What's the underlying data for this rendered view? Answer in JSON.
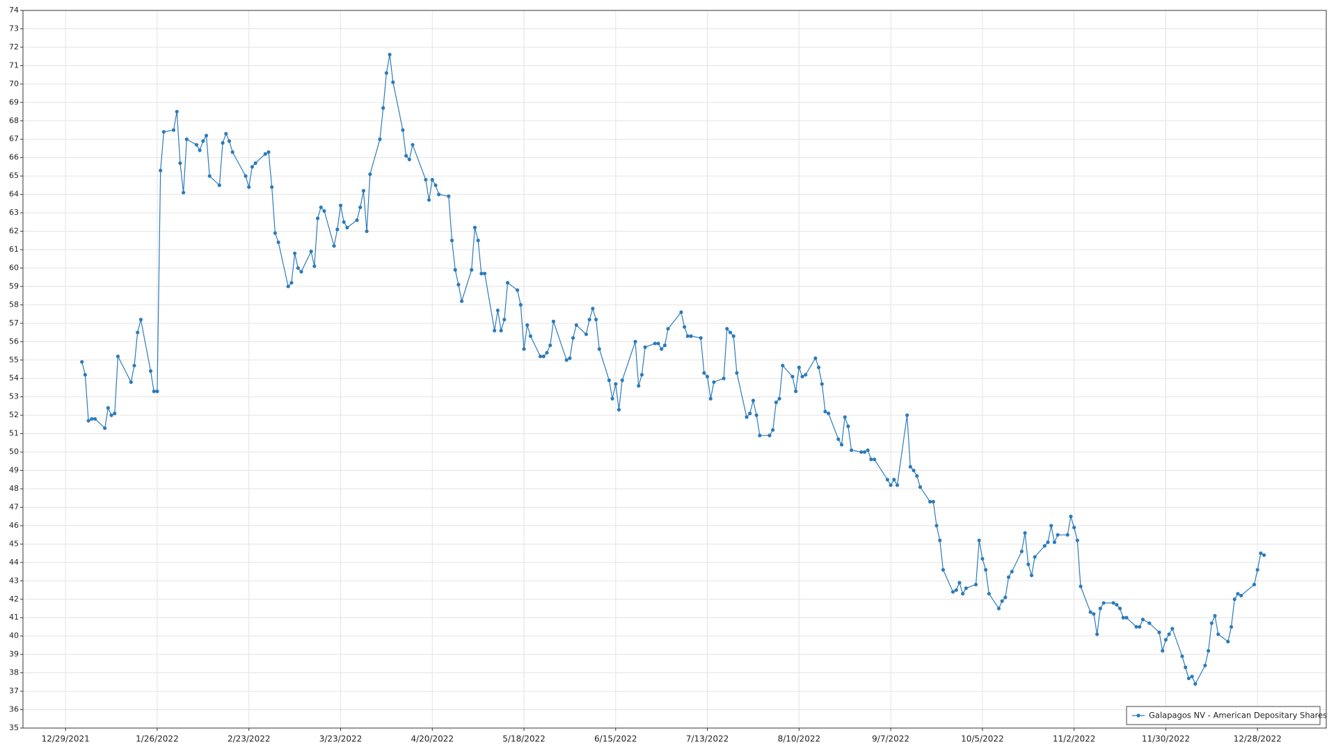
{
  "chart_data": {
    "type": "line",
    "x": [
      "1/3/2022",
      "1/4/2022",
      "1/5/2022",
      "1/6/2022",
      "1/7/2022",
      "1/10/2022",
      "1/11/2022",
      "1/12/2022",
      "1/13/2022",
      "1/14/2022",
      "1/18/2022",
      "1/19/2022",
      "1/20/2022",
      "1/21/2022",
      "1/24/2022",
      "1/25/2022",
      "1/26/2022",
      "1/27/2022",
      "1/28/2022",
      "1/31/2022",
      "2/1/2022",
      "2/2/2022",
      "2/3/2022",
      "2/4/2022",
      "2/7/2022",
      "2/8/2022",
      "2/9/2022",
      "2/10/2022",
      "2/11/2022",
      "2/14/2022",
      "2/15/2022",
      "2/16/2022",
      "2/17/2022",
      "2/18/2022",
      "2/22/2022",
      "2/23/2022",
      "2/24/2022",
      "2/25/2022",
      "2/28/2022",
      "3/1/2022",
      "3/2/2022",
      "3/3/2022",
      "3/4/2022",
      "3/7/2022",
      "3/8/2022",
      "3/9/2022",
      "3/10/2022",
      "3/11/2022",
      "3/14/2022",
      "3/15/2022",
      "3/16/2022",
      "3/17/2022",
      "3/18/2022",
      "3/21/2022",
      "3/22/2022",
      "3/23/2022",
      "3/24/2022",
      "3/25/2022",
      "3/28/2022",
      "3/29/2022",
      "3/30/2022",
      "3/31/2022",
      "4/1/2022",
      "4/4/2022",
      "4/5/2022",
      "4/6/2022",
      "4/7/2022",
      "4/8/2022",
      "4/11/2022",
      "4/12/2022",
      "4/13/2022",
      "4/14/2022",
      "4/18/2022",
      "4/19/2022",
      "4/20/2022",
      "4/21/2022",
      "4/22/2022",
      "4/25/2022",
      "4/26/2022",
      "4/27/2022",
      "4/28/2022",
      "4/29/2022",
      "5/2/2022",
      "5/3/2022",
      "5/4/2022",
      "5/5/2022",
      "5/6/2022",
      "5/9/2022",
      "5/10/2022",
      "5/11/2022",
      "5/12/2022",
      "5/13/2022",
      "5/16/2022",
      "5/17/2022",
      "5/18/2022",
      "5/19/2022",
      "5/20/2022",
      "5/23/2022",
      "5/24/2022",
      "5/25/2022",
      "5/26/2022",
      "5/27/2022",
      "5/31/2022",
      "6/1/2022",
      "6/2/2022",
      "6/3/2022",
      "6/6/2022",
      "6/7/2022",
      "6/8/2022",
      "6/9/2022",
      "6/10/2022",
      "6/13/2022",
      "6/14/2022",
      "6/15/2022",
      "6/16/2022",
      "6/17/2022",
      "6/21/2022",
      "6/22/2022",
      "6/23/2022",
      "6/24/2022",
      "6/27/2022",
      "6/28/2022",
      "6/29/2022",
      "6/30/2022",
      "7/1/2022",
      "7/5/2022",
      "7/6/2022",
      "7/7/2022",
      "7/8/2022",
      "7/11/2022",
      "7/12/2022",
      "7/13/2022",
      "7/14/2022",
      "7/15/2022",
      "7/18/2022",
      "7/19/2022",
      "7/20/2022",
      "7/21/2022",
      "7/22/2022",
      "7/25/2022",
      "7/26/2022",
      "7/27/2022",
      "7/28/2022",
      "7/29/2022",
      "8/1/2022",
      "8/2/2022",
      "8/3/2022",
      "8/4/2022",
      "8/5/2022",
      "8/8/2022",
      "8/9/2022",
      "8/10/2022",
      "8/11/2022",
      "8/12/2022",
      "8/15/2022",
      "8/16/2022",
      "8/17/2022",
      "8/18/2022",
      "8/19/2022",
      "8/22/2022",
      "8/23/2022",
      "8/24/2022",
      "8/25/2022",
      "8/26/2022",
      "8/29/2022",
      "8/30/2022",
      "8/31/2022",
      "9/1/2022",
      "9/2/2022",
      "9/6/2022",
      "9/7/2022",
      "9/8/2022",
      "9/9/2022",
      "9/12/2022",
      "9/13/2022",
      "9/14/2022",
      "9/15/2022",
      "9/16/2022",
      "9/19/2022",
      "9/20/2022",
      "9/21/2022",
      "9/22/2022",
      "9/23/2022",
      "9/26/2022",
      "9/27/2022",
      "9/28/2022",
      "9/29/2022",
      "9/30/2022",
      "10/3/2022",
      "10/4/2022",
      "10/5/2022",
      "10/6/2022",
      "10/7/2022",
      "10/10/2022",
      "10/11/2022",
      "10/12/2022",
      "10/13/2022",
      "10/14/2022",
      "10/17/2022",
      "10/18/2022",
      "10/19/2022",
      "10/20/2022",
      "10/21/2022",
      "10/24/2022",
      "10/25/2022",
      "10/26/2022",
      "10/27/2022",
      "10/28/2022",
      "10/31/2022",
      "11/1/2022",
      "11/2/2022",
      "11/3/2022",
      "11/4/2022",
      "11/7/2022",
      "11/8/2022",
      "11/9/2022",
      "11/10/2022",
      "11/11/2022",
      "11/14/2022",
      "11/15/2022",
      "11/16/2022",
      "11/17/2022",
      "11/18/2022",
      "11/21/2022",
      "11/22/2022",
      "11/23/2022",
      "11/25/2022",
      "11/28/2022",
      "11/29/2022",
      "11/30/2022",
      "12/1/2022",
      "12/2/2022",
      "12/5/2022",
      "12/6/2022",
      "12/7/2022",
      "12/8/2022",
      "12/9/2022",
      "12/12/2022",
      "12/13/2022",
      "12/14/2022",
      "12/15/2022",
      "12/16/2022",
      "12/19/2022",
      "12/20/2022",
      "12/21/2022",
      "12/22/2022",
      "12/23/2022",
      "12/27/2022",
      "12/28/2022",
      "12/29/2022",
      "12/30/2022"
    ],
    "series": [
      {
        "name": "Galapagos NV - American Depositary Shares",
        "color": "#2b7bba",
        "values": [
          54.9,
          54.2,
          51.7,
          51.8,
          51.8,
          51.3,
          52.4,
          52.0,
          52.1,
          55.2,
          53.8,
          54.7,
          56.5,
          57.2,
          54.4,
          53.3,
          53.3,
          65.3,
          67.4,
          67.5,
          68.5,
          65.7,
          64.1,
          67.0,
          66.7,
          66.4,
          66.9,
          67.2,
          65.0,
          64.5,
          66.8,
          67.3,
          66.9,
          66.3,
          65.0,
          64.4,
          65.5,
          65.7,
          66.2,
          66.3,
          64.4,
          61.9,
          61.4,
          59.0,
          59.2,
          60.8,
          60.0,
          59.8,
          60.9,
          60.1,
          62.7,
          63.3,
          63.1,
          61.2,
          62.1,
          63.4,
          62.5,
          62.2,
          62.6,
          63.3,
          64.2,
          62.0,
          65.1,
          67.0,
          68.7,
          70.6,
          71.6,
          70.1,
          67.5,
          66.1,
          65.9,
          66.7,
          64.8,
          63.7,
          64.8,
          64.5,
          64.0,
          63.9,
          61.5,
          59.9,
          59.1,
          58.2,
          59.9,
          62.2,
          61.5,
          59.7,
          59.7,
          56.6,
          57.7,
          56.6,
          57.2,
          59.2,
          58.8,
          58.0,
          55.6,
          56.9,
          56.3,
          55.2,
          55.2,
          55.4,
          55.8,
          57.1,
          55.0,
          55.1,
          56.2,
          56.9,
          56.4,
          57.2,
          57.8,
          57.2,
          55.6,
          53.9,
          52.9,
          53.7,
          52.3,
          53.9,
          56.0,
          53.6,
          54.2,
          55.7,
          55.9,
          55.9,
          55.6,
          55.8,
          56.7,
          57.6,
          56.8,
          56.3,
          56.3,
          56.2,
          54.3,
          54.1,
          52.9,
          53.8,
          54.0,
          56.7,
          56.5,
          56.3,
          54.3,
          51.9,
          52.1,
          52.8,
          52.0,
          50.9,
          50.9,
          51.2,
          52.7,
          52.9,
          54.7,
          54.1,
          53.3,
          54.6,
          54.1,
          54.2,
          55.1,
          54.6,
          53.7,
          52.2,
          52.1,
          50.7,
          50.4,
          51.9,
          51.4,
          50.1,
          50.0,
          50.0,
          50.1,
          49.6,
          49.6,
          48.5,
          48.2,
          48.5,
          48.2,
          52.0,
          49.2,
          49.0,
          48.7,
          48.1,
          47.3,
          47.3,
          46.0,
          45.2,
          43.6,
          42.4,
          42.5,
          42.9,
          42.3,
          42.6,
          42.8,
          45.2,
          44.2,
          43.6,
          42.3,
          41.5,
          41.9,
          42.1,
          43.2,
          43.5,
          44.6,
          45.6,
          43.9,
          43.3,
          44.3,
          44.9,
          45.1,
          46.0,
          45.1,
          45.5,
          45.5,
          46.5,
          45.9,
          45.2,
          42.7,
          41.3,
          41.2,
          40.1,
          41.5,
          41.8,
          41.8,
          41.7,
          41.5,
          41.0,
          41.0,
          40.5,
          40.5,
          40.9,
          40.7,
          40.2,
          39.2,
          39.8,
          40.1,
          40.4,
          38.9,
          38.3,
          37.7,
          37.8,
          37.4,
          38.4,
          39.2,
          40.7,
          41.1,
          40.1,
          39.7,
          40.5,
          42.0,
          42.3,
          42.2,
          42.8,
          43.6,
          44.5,
          44.4
        ]
      }
    ],
    "xlim": [
      "12/16/2021",
      "1/18/2023"
    ],
    "xticks": [
      "12/29/2021",
      "1/26/2022",
      "2/23/2022",
      "3/23/2022",
      "4/20/2022",
      "5/18/2022",
      "6/15/2022",
      "7/13/2022",
      "8/10/2022",
      "9/7/2022",
      "10/5/2022",
      "11/2/2022",
      "11/30/2022",
      "12/28/2022"
    ],
    "ylim": [
      35,
      74
    ],
    "yticks": [
      35,
      36,
      37,
      38,
      39,
      40,
      41,
      42,
      43,
      44,
      45,
      46,
      47,
      48,
      49,
      50,
      51,
      52,
      53,
      54,
      55,
      56,
      57,
      58,
      59,
      60,
      61,
      62,
      63,
      64,
      65,
      66,
      67,
      68,
      69,
      70,
      71,
      72,
      73,
      74
    ],
    "grid": true,
    "legend": "bottom-right"
  }
}
